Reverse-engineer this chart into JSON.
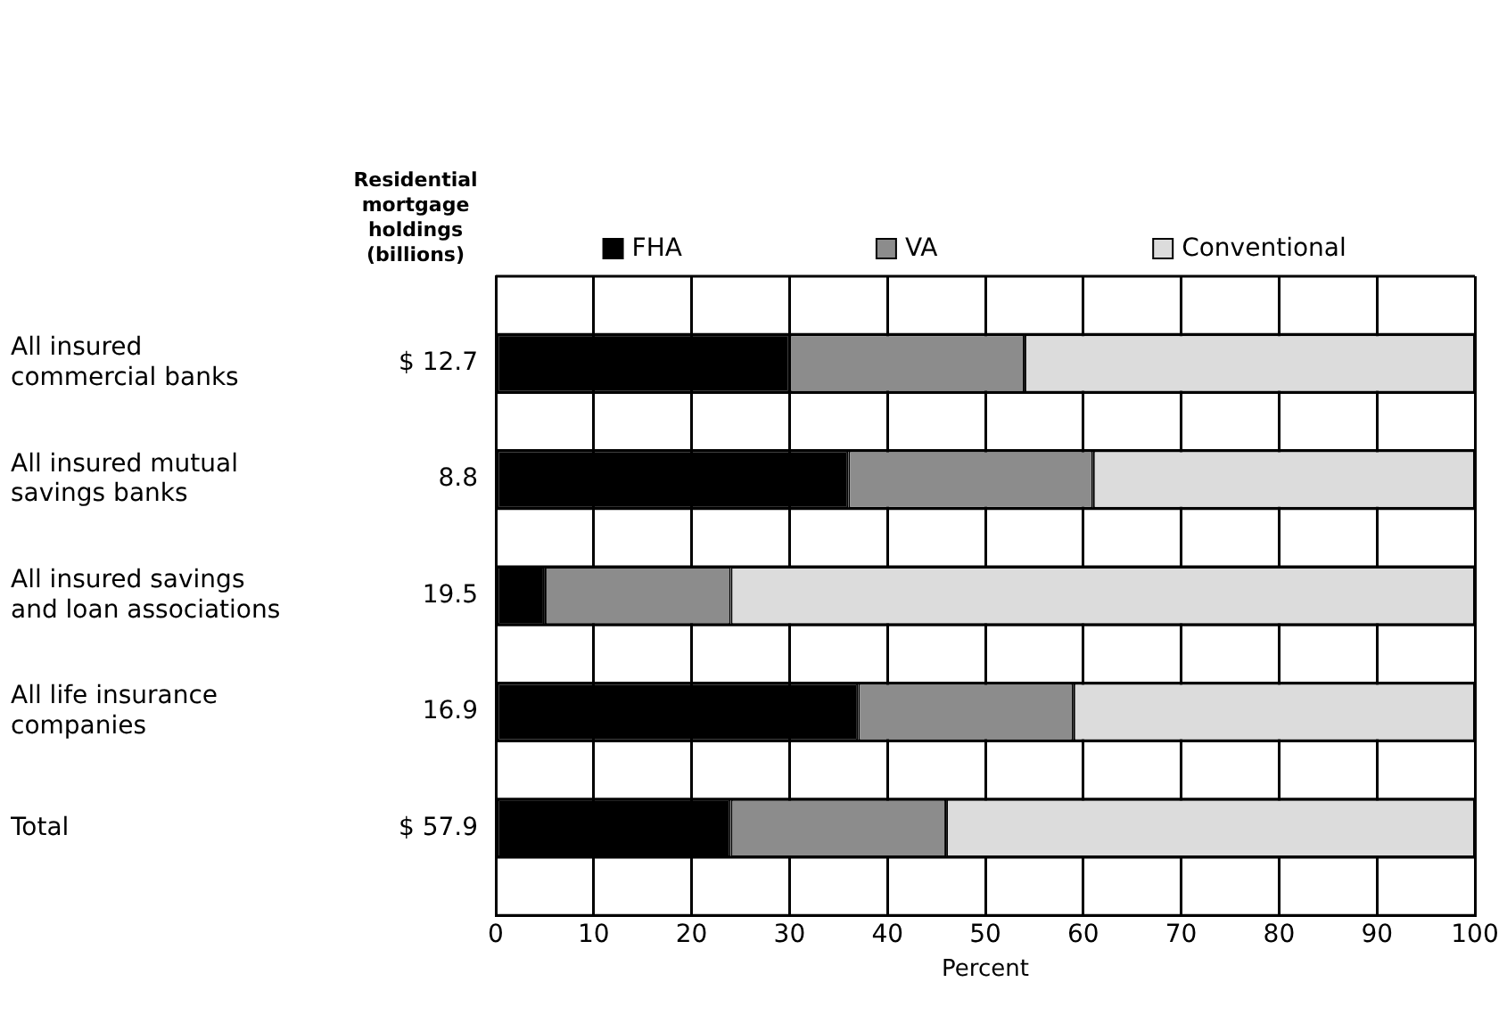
{
  "chart_data": {
    "type": "bar",
    "orientation": "horizontal",
    "stacked": true,
    "categories": [
      "All insured commercial banks",
      "All insured mutual savings banks",
      "All insured savings and loan associations",
      "All life insurance companies",
      "Total"
    ],
    "series": [
      {
        "name": "FHA",
        "color": "#000000",
        "values": [
          30,
          36,
          5,
          37,
          24
        ]
      },
      {
        "name": "VA",
        "color": "#8c8c8c",
        "values": [
          24,
          25,
          19,
          22,
          22
        ]
      },
      {
        "name": "Conventional",
        "color": "#dcdcdc",
        "values": [
          46,
          39,
          76,
          41,
          54
        ]
      }
    ],
    "xlabel": "Percent",
    "xlim": [
      0,
      100
    ],
    "xticks": [
      0,
      10,
      20,
      30,
      40,
      50,
      60,
      70,
      80,
      90,
      100
    ],
    "grid": "x",
    "legend": "top",
    "annotations": [
      "Residential mortgage holdings (billions)",
      "$ 12.7",
      "8.8",
      "19.5",
      "16.9",
      "$ 57.9"
    ]
  }
}
